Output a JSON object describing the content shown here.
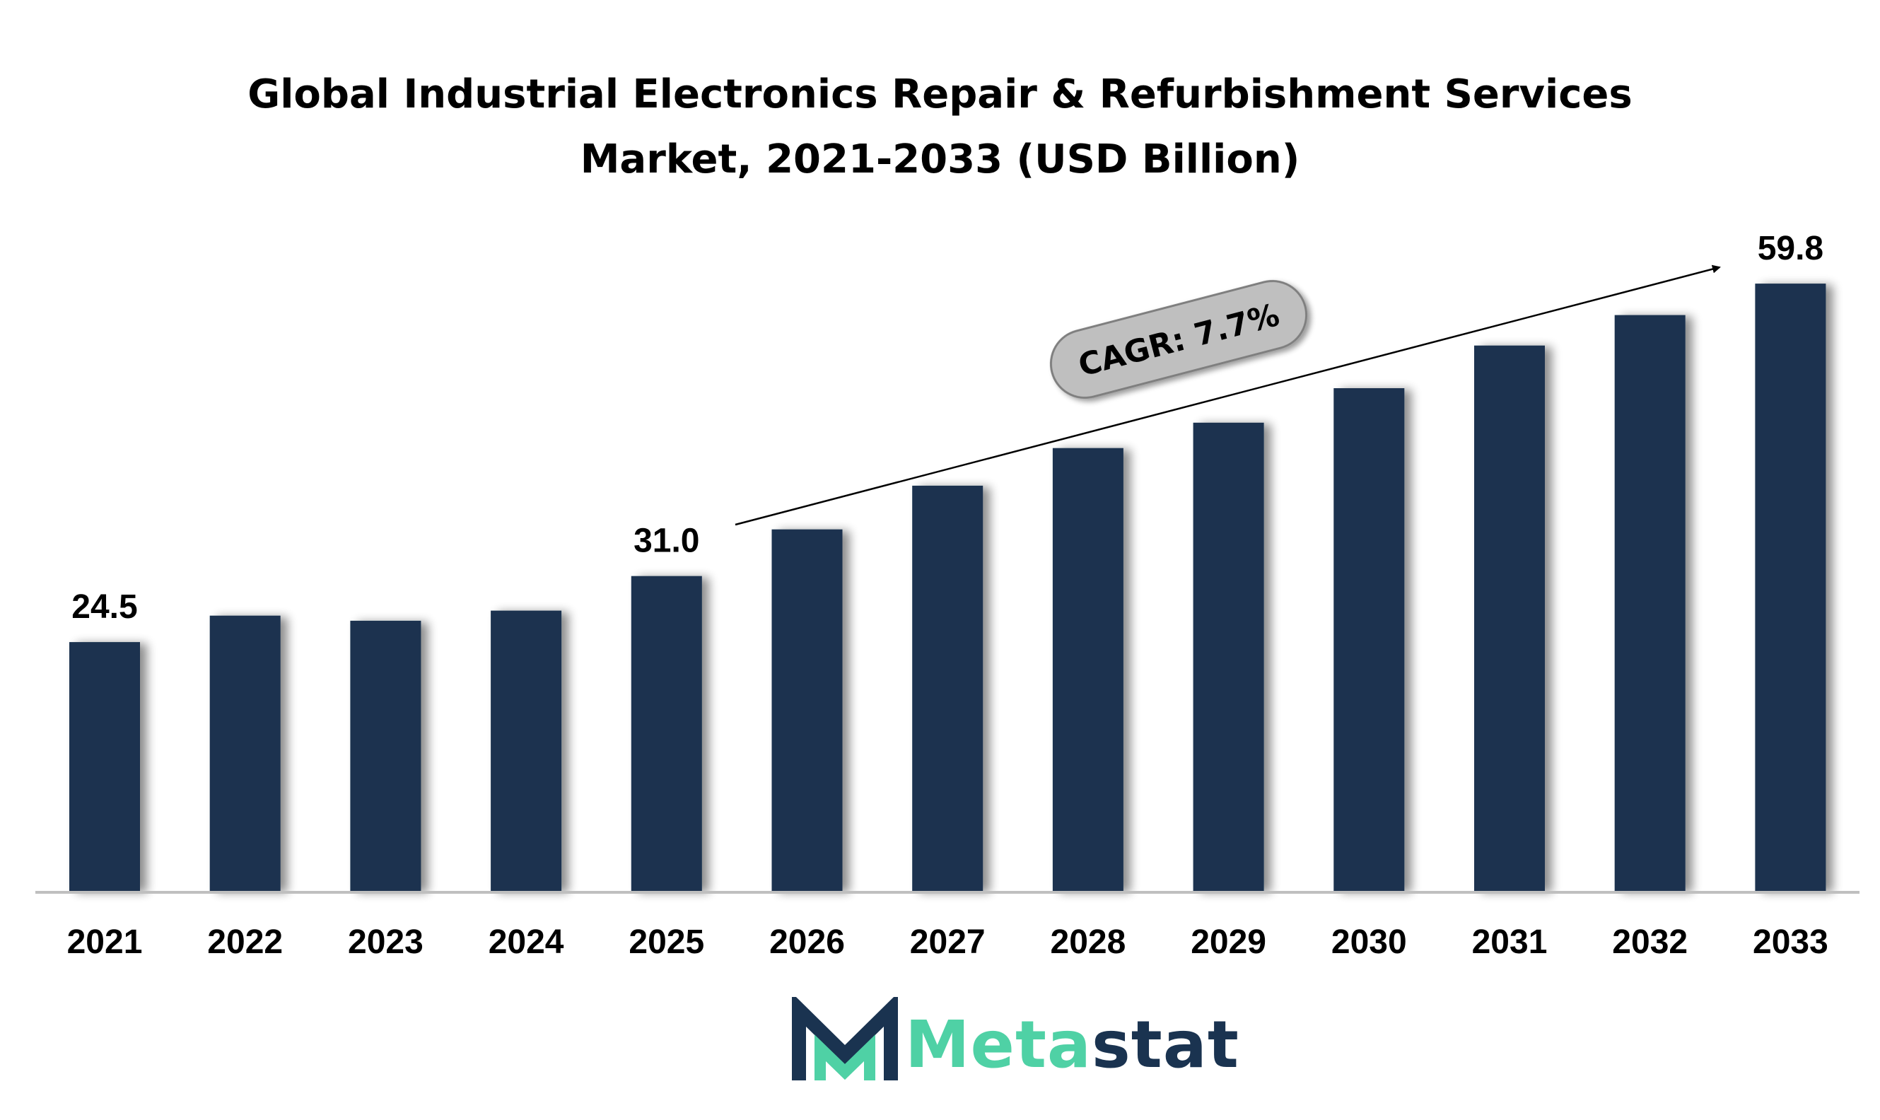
{
  "title_line1": "Global Industrial Electronics Repair & Refurbishment Services",
  "title_line2": "Market, 2021-2033 (USD Billion)",
  "cagr_label": "CAGR: 7.7%",
  "logo": {
    "part1": "Meta",
    "part2": "stat",
    "color1": "#4FD1A5",
    "color2": "#1A3350"
  },
  "colors": {
    "bar": "#1A3350",
    "axis": "#BFBFBF",
    "badge": "#BFBFBF"
  },
  "chart_data": {
    "type": "bar",
    "categories": [
      "2021",
      "2022",
      "2023",
      "2024",
      "2025",
      "2026",
      "2027",
      "2028",
      "2029",
      "2030",
      "2031",
      "2032",
      "2033"
    ],
    "values": [
      24.5,
      27.1,
      26.6,
      27.6,
      31.0,
      35.6,
      39.9,
      43.6,
      46.1,
      49.5,
      53.7,
      56.7,
      59.8
    ],
    "data_labels": [
      "24.5",
      "",
      "",
      "",
      "31.0",
      "",
      "",
      "",
      "",
      "",
      "",
      "",
      "59.8"
    ],
    "title": "Global Industrial Electronics Repair & Refurbishment Services Market, 2021-2033 (USD Billion)",
    "xlabel": "",
    "ylabel": "",
    "ylim": [
      0,
      66
    ],
    "grid": false,
    "legend": "none"
  }
}
